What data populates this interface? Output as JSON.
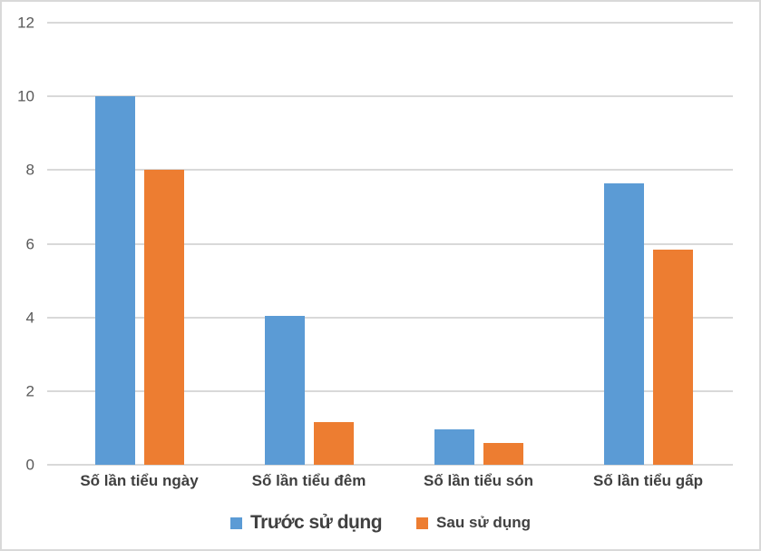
{
  "chart_data": {
    "type": "bar",
    "categories": [
      "Số lần tiểu ngày",
      "Số lần tiểu đêm",
      "Số lần tiểu són",
      "Số lần tiểu gấp"
    ],
    "series": [
      {
        "name": "Trước sử dụng",
        "color": "#5B9BD5",
        "values": [
          10,
          4.05,
          0.95,
          7.65
        ]
      },
      {
        "name": "Sau sử dụng",
        "color": "#ED7D31",
        "values": [
          8,
          1.15,
          0.6,
          5.85
        ]
      }
    ],
    "title": "",
    "xlabel": "",
    "ylabel": "",
    "ylim": [
      0,
      12
    ],
    "yticks": [
      0,
      2,
      4,
      6,
      8,
      10,
      12
    ],
    "grid": true,
    "legend_position": "bottom"
  },
  "colors": {
    "background": "#FFFFFF",
    "frame_border": "#D9D9D9",
    "gridline": "#D9D9D9",
    "axis_text": "#595959",
    "category_text": "#3F3F3F",
    "legend_text": "#404040",
    "series_blue": "#5B9BD5",
    "series_orange": "#ED7D31"
  }
}
